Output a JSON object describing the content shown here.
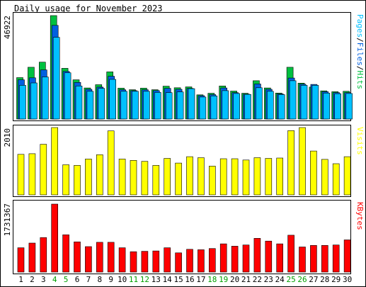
{
  "chart_data": {
    "type": "bar",
    "title": "Daily usage for November 2023",
    "days": [
      "1",
      "2",
      "3",
      "4",
      "5",
      "6",
      "7",
      "8",
      "9",
      "10",
      "11",
      "12",
      "13",
      "14",
      "15",
      "16",
      "17",
      "18",
      "19",
      "20",
      "21",
      "22",
      "23",
      "24",
      "25",
      "26",
      "27",
      "28",
      "29",
      "30"
    ],
    "weekend_days": [
      "4",
      "5",
      "11",
      "12",
      "18",
      "19",
      "25",
      "26"
    ],
    "colors": {
      "hits": "#00c040",
      "files": "#0060e0",
      "pages": "#00c0ff",
      "visits": "#ffff00",
      "kbytes": "#ff0000",
      "weekday_label": "#000000",
      "weekend_label": "#00a000",
      "axis_label_legend_pages": "#00c0ff",
      "axis_label_legend_files": "#0060e0",
      "axis_label_legend_hits": "#00c040",
      "axis_label_visits": "#ffff00",
      "axis_label_kbytes": "#ff0000"
    },
    "panels": [
      {
        "id": "hits-files-pages",
        "ymax_label": "46922",
        "ylim": [
          0,
          46922
        ],
        "legend": [
          {
            "text": "Pages",
            "color_key": "pages"
          },
          {
            "text": "/",
            "color_key": "weekday_label"
          },
          {
            "text": "Files",
            "color_key": "files"
          },
          {
            "text": "/",
            "color_key": "weekday_label"
          },
          {
            "text": "Hits",
            "color_key": "hits"
          }
        ],
        "series": [
          {
            "name": "Hits",
            "color_key": "hits",
            "values": [
              18800,
              23500,
              25800,
              46922,
              23000,
              17800,
              14100,
              15600,
              21400,
              14000,
              13300,
              14000,
              13300,
              14900,
              14200,
              14600,
              11000,
              11700,
              15000,
              12700,
              11700,
              17400,
              14100,
              11800,
              23500,
              16300,
              14500,
              12800,
              12400,
              12600
            ]
          },
          {
            "name": "Files",
            "color_key": "files",
            "values": [
              17800,
              18700,
              22300,
              42500,
              21600,
              16600,
              13500,
              14500,
              19400,
              13300,
              12900,
              13300,
              12900,
              13900,
              13500,
              13900,
              10600,
              11100,
              14100,
              12000,
              11300,
              15900,
              13500,
              11400,
              18600,
              15800,
              15700,
              12400,
              12000,
              12000
            ]
          },
          {
            "name": "Pages",
            "color_key": "pages",
            "values": [
              15300,
              16400,
              19100,
              37100,
              21000,
              15000,
              12600,
              13900,
              18000,
              12600,
              12600,
              12600,
              12100,
              12000,
              12300,
              13800,
              10000,
              10500,
              12900,
              11600,
              11200,
              14200,
              12600,
              11100,
              17400,
              15300,
              15300,
              11800,
              11500,
              11600
            ]
          }
        ]
      },
      {
        "id": "visits",
        "ymax_label": "2010",
        "ylim": [
          0,
          2010
        ],
        "legend": [
          {
            "text": "Visits",
            "color_key": "axis_label_visits"
          }
        ],
        "series": [
          {
            "name": "Visits",
            "color_key": "visits",
            "values": [
              1210,
              1230,
              1510,
              2010,
              900,
              880,
              1070,
              1200,
              1910,
              1070,
              1030,
              1000,
              880,
              1090,
              950,
              1140,
              1110,
              860,
              1080,
              1080,
              1040,
              1110,
              1090,
              1100,
              1920,
              2010,
              1310,
              1060,
              930,
              1140
            ]
          }
        ]
      },
      {
        "id": "kbytes",
        "ymax_label": "1731367",
        "ylim": [
          0,
          1731367
        ],
        "legend": [
          {
            "text": "KBytes",
            "color_key": "axis_label_kbytes"
          }
        ],
        "series": [
          {
            "name": "KBytes",
            "color_key": "kbytes",
            "values": [
              620000,
              740000,
              880000,
              1731367,
              950000,
              770000,
              650000,
              760000,
              760000,
              620000,
              520000,
              530000,
              540000,
              620000,
              490000,
              580000,
              570000,
              600000,
              720000,
              660000,
              690000,
              860000,
              790000,
              720000,
              940000,
              640000,
              680000,
              680000,
              690000,
              820000
            ]
          }
        ]
      }
    ]
  }
}
